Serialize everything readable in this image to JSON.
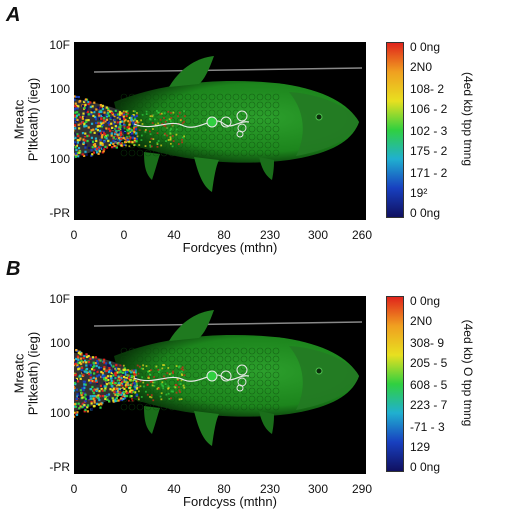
{
  "chart_data": [
    {
      "type": "heatmap",
      "panel_label": "A",
      "yticks": [
        "10F",
        "100",
        "100",
        "-PR"
      ],
      "ylabel": "P'ltkeath) (ieg)",
      "ylabel_second": "Mreatc",
      "xticks": [
        "0",
        "0",
        "40",
        "80",
        "230",
        "300",
        "260"
      ],
      "xlabel": "Fordcyes (mthn)",
      "colorbar_ticks": [
        "0 0ng",
        "2N0",
        "108- 2",
        "106 - 2",
        "102 - 3",
        "175 - 2",
        "171 - 2",
        "19²",
        "0 0ng"
      ],
      "colorbar_label": "(4ed kb) tpp tmng",
      "colormap": [
        "#e0241c",
        "#f0a020",
        "#e8e020",
        "#30d040",
        "#20b0d0",
        "#1840c0",
        "#101060"
      ],
      "background": "#000000",
      "fish_color": "#1e8c1e"
    },
    {
      "type": "heatmap",
      "panel_label": "B",
      "yticks": [
        "10F",
        "100",
        "100",
        "-PR"
      ],
      "ylabel": "P'ltkeath) (ieg)",
      "ylabel_second": "Mreatc",
      "xticks": [
        "0",
        "0",
        "40",
        "80",
        "230",
        "300",
        "290"
      ],
      "xlabel": "Fordcyss (mthn)",
      "colorbar_ticks": [
        "0 0ng",
        "2N0",
        "308- 9",
        "205 - 5",
        "608 - 5",
        "223 - 7",
        "-71 - 3",
        "129",
        "0 0ng"
      ],
      "colorbar_label": "(4ed kb) O tpp tmng",
      "colormap": [
        "#e0241c",
        "#f0a020",
        "#e8e020",
        "#30d040",
        "#20b0d0",
        "#1840c0",
        "#101060"
      ],
      "background": "#000000",
      "fish_color": "#1e8c1e"
    }
  ]
}
